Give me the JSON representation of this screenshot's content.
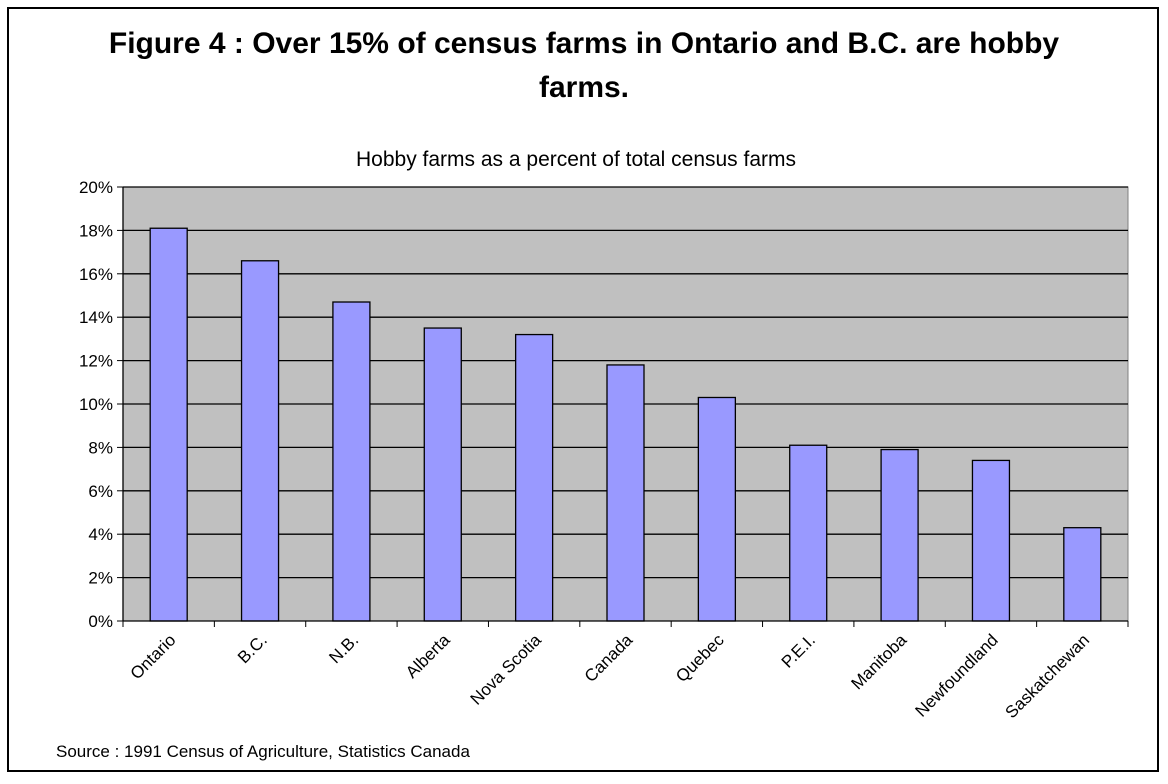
{
  "title": "Figure 4 : Over 15% of census farms in Ontario and B.C. are hobby farms.",
  "source": "Source : 1991 Census of Agriculture, Statistics Canada",
  "chart_data": {
    "type": "bar",
    "title": "Hobby farms as a percent of total census farms",
    "categories": [
      "Ontario",
      "B.C.",
      "N.B.",
      "Alberta",
      "Nova Scotia",
      "Canada",
      "Quebec",
      "P.E.I.",
      "Manitoba",
      "Newfoundland",
      "Saskatchewan"
    ],
    "values": [
      18.1,
      16.6,
      14.7,
      13.5,
      13.2,
      11.8,
      10.3,
      8.1,
      7.9,
      7.4,
      4.3
    ],
    "ylim": [
      0,
      20
    ],
    "yticks": [
      "0%",
      "2%",
      "4%",
      "6%",
      "8%",
      "10%",
      "12%",
      "14%",
      "16%",
      "18%",
      "20%"
    ],
    "xlabel": "",
    "ylabel": "",
    "grid": true,
    "legend": "none",
    "colors": {
      "bar": "#9999ff",
      "plot_bg": "#c0c0c0",
      "grid": "#000000"
    }
  }
}
